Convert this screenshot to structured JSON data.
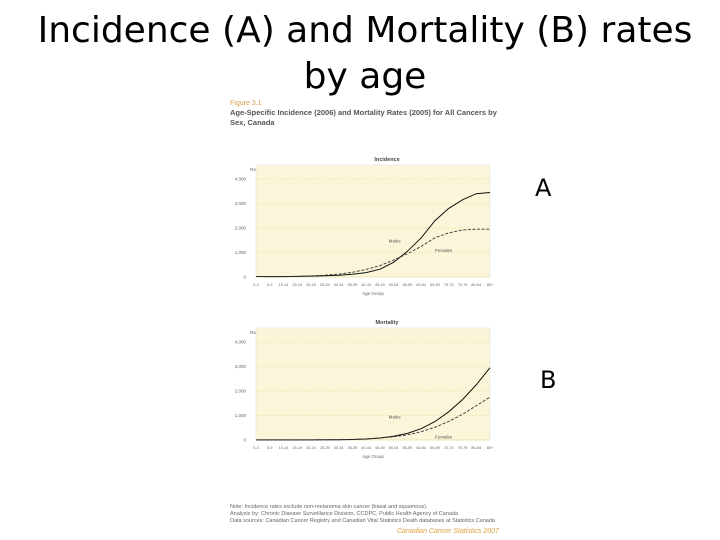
{
  "slide": {
    "title": "Incidence (A) and Mortality (B) rates by age",
    "tags": [
      "A",
      "B"
    ]
  },
  "figure": {
    "number": "Figure 3.1",
    "title": "Age-Specific Incidence (2006) and Mortality Rates (2005) for All Cancers by Sex, Canada",
    "notes": [
      "Note: Incidence rates exclude non-melanoma skin cancer (basal and squamous).",
      "Analysis by: Chronic Disease Surveillance Division, CCDPC, Public Health Agency of Canada",
      "Data sources: Canadian Cancer Registry and Canadian Vital Statistics Death databases at Statistics Canada"
    ],
    "footer": "Canadian Cancer Statistics 2007"
  },
  "colors": {
    "plot_bg": "#fbf6d9",
    "grid": "#e8d98a",
    "male_line": "#111111",
    "female_line": "#333333"
  },
  "chart_data": [
    {
      "type": "line",
      "title": "Incidence",
      "ylabel": "Rate (per 100,000)",
      "xlabel": "Age Group",
      "ylim": [
        0,
        4000
      ],
      "yticks": [
        "0",
        "1,000",
        "2,000",
        "3,000",
        "4,000"
      ],
      "categories": [
        "0-4",
        "5-9",
        "10-14",
        "15-19",
        "20-24",
        "25-29",
        "30-34",
        "35-39",
        "40-44",
        "45-49",
        "50-54",
        "55-59",
        "60-64",
        "65-69",
        "70-74",
        "75-79",
        "80-84",
        "85+"
      ],
      "series": [
        {
          "name": "Males",
          "values": [
            20,
            15,
            15,
            25,
            35,
            50,
            70,
            110,
            180,
            320,
            600,
            1050,
            1600,
            2300,
            2800,
            3150,
            3400,
            3450
          ]
        },
        {
          "name": "Females",
          "values": [
            20,
            12,
            15,
            25,
            45,
            75,
            120,
            190,
            310,
            460,
            690,
            950,
            1250,
            1600,
            1800,
            1920,
            1950,
            1950
          ]
        }
      ]
    },
    {
      "type": "line",
      "title": "Mortality",
      "ylabel": "Rate (per 100,000)",
      "xlabel": "Age Group",
      "ylim": [
        0,
        4000
      ],
      "yticks": [
        "0",
        "1,000",
        "2,000",
        "3,000",
        "4,000"
      ],
      "categories": [
        "0-4",
        "5-9",
        "10-14",
        "15-19",
        "20-24",
        "25-29",
        "30-34",
        "35-39",
        "40-44",
        "45-49",
        "50-54",
        "55-59",
        "60-64",
        "65-69",
        "70-74",
        "75-79",
        "80-84",
        "85+"
      ],
      "series": [
        {
          "name": "Males",
          "values": [
            3,
            3,
            3,
            4,
            6,
            8,
            12,
            20,
            40,
            80,
            150,
            270,
            460,
            750,
            1150,
            1650,
            2250,
            2950
          ]
        },
        {
          "name": "Females",
          "values": [
            2,
            2,
            2,
            3,
            5,
            8,
            14,
            25,
            45,
            80,
            130,
            210,
            340,
            520,
            760,
            1050,
            1400,
            1750
          ]
        }
      ]
    }
  ]
}
